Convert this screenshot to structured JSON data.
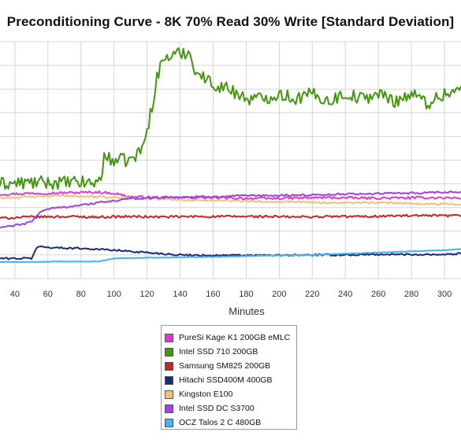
{
  "chart_data": {
    "type": "line",
    "title": "Preconditioning Curve - 8K 70% Read 30% Write [Standard Deviation]",
    "xlabel": "Minutes",
    "ylabel": "",
    "x_ticks": [
      40,
      60,
      80,
      100,
      120,
      140,
      160,
      180,
      200,
      220,
      240,
      260,
      280,
      300
    ],
    "xlim": [
      31,
      310
    ],
    "ylim": [
      0,
      10
    ],
    "grid": true,
    "legend_position": "bottom-center",
    "series": [
      {
        "name": "PureSi Kage K1 200GB eMLC",
        "color": "#d63ecf",
        "x": [
          31,
          50,
          70,
          90,
          100,
          110,
          130,
          150,
          170,
          190,
          210,
          230,
          250,
          270,
          290,
          310
        ],
        "y": [
          3.56,
          3.6,
          3.62,
          3.65,
          3.6,
          3.45,
          3.42,
          3.42,
          3.4,
          3.38,
          3.4,
          3.42,
          3.4,
          3.4,
          3.42,
          3.4
        ],
        "noise": 0.05
      },
      {
        "name": "Intel SSD 710 200GB",
        "color": "#44960e",
        "x": [
          31,
          50,
          70,
          90,
          92,
          94,
          100,
          110,
          115,
          118,
          120,
          123,
          126,
          130,
          135,
          140,
          145,
          150,
          160,
          170,
          180,
          190,
          200,
          210,
          220,
          230,
          240,
          250,
          260,
          270,
          280,
          290,
          300,
          310
        ],
        "y": [
          4.0,
          4.05,
          4.05,
          4.05,
          4.3,
          5.1,
          5.0,
          5.0,
          5.3,
          5.7,
          6.2,
          7.3,
          8.5,
          9.3,
          9.4,
          9.5,
          9.6,
          8.7,
          8.2,
          8.0,
          7.6,
          7.6,
          7.8,
          7.6,
          7.8,
          7.5,
          7.8,
          7.6,
          7.8,
          7.5,
          7.8,
          7.4,
          7.8,
          8.0
        ],
        "noise": 0.28
      },
      {
        "name": "Samsung SM825 200GB",
        "color": "#c2262a",
        "x": [
          31,
          50,
          70,
          90,
          110,
          130,
          150,
          170,
          190,
          210,
          230,
          250,
          270,
          290,
          310
        ],
        "y": [
          2.55,
          2.6,
          2.62,
          2.6,
          2.62,
          2.6,
          2.62,
          2.62,
          2.62,
          2.6,
          2.62,
          2.62,
          2.65,
          2.65,
          2.65
        ],
        "noise": 0.05
      },
      {
        "name": "Hitachi SSD400M 400GB",
        "color": "#1c2a7c",
        "x": [
          31,
          50,
          52,
          54,
          65,
          80,
          100,
          120,
          140,
          160,
          180,
          200,
          220,
          240,
          260,
          280,
          300,
          310
        ],
        "y": [
          0.85,
          0.85,
          1.15,
          1.35,
          1.3,
          1.28,
          1.2,
          1.1,
          1.0,
          0.98,
          0.98,
          0.98,
          1.0,
          1.0,
          1.02,
          1.02,
          1.02,
          1.05
        ],
        "noise": 0.04
      },
      {
        "name": "Kingston E100",
        "color": "#f2c07a",
        "x": [
          31,
          50,
          70,
          90,
          110,
          130,
          150,
          170,
          190,
          210,
          230,
          250,
          270,
          290,
          310
        ],
        "y": [
          3.4,
          3.45,
          3.5,
          3.45,
          3.4,
          3.35,
          3.3,
          3.3,
          3.25,
          3.25,
          3.2,
          3.2,
          3.2,
          3.15,
          3.15
        ],
        "noise": 0.04
      },
      {
        "name": "Intel SSD DC S3700",
        "color": "#a140e6",
        "x": [
          31,
          45,
          50,
          55,
          60,
          70,
          80,
          90,
          100,
          110,
          130,
          150,
          170,
          190,
          210,
          230,
          250,
          270,
          290,
          310
        ],
        "y": [
          2.15,
          2.3,
          2.4,
          2.8,
          2.95,
          3.02,
          3.1,
          3.2,
          3.28,
          3.38,
          3.42,
          3.45,
          3.48,
          3.5,
          3.52,
          3.55,
          3.58,
          3.6,
          3.62,
          3.65
        ],
        "noise": 0.04
      },
      {
        "name": "OCZ Talos 2 C 480GB",
        "color": "#43b4ee",
        "x": [
          31,
          50,
          70,
          90,
          95,
          100,
          120,
          140,
          160,
          180,
          200,
          220,
          240,
          260,
          280,
          300,
          310
        ],
        "y": [
          0.7,
          0.7,
          0.72,
          0.72,
          0.78,
          0.85,
          0.88,
          0.9,
          0.92,
          0.95,
          0.98,
          1.0,
          1.05,
          1.1,
          1.15,
          1.2,
          1.25
        ],
        "noise": 0.01
      }
    ]
  },
  "legend": {
    "items": [
      {
        "label": "PureSi Kage K1 200GB eMLC",
        "color": "#d63ecf"
      },
      {
        "label": "Intel SSD 710 200GB",
        "color": "#44960e"
      },
      {
        "label": "Samsung SM825 200GB",
        "color": "#c2262a"
      },
      {
        "label": "Hitachi SSD400M 400GB",
        "color": "#1c2a7c"
      },
      {
        "label": "Kingston E100",
        "color": "#f2c07a"
      },
      {
        "label": "Intel SSD DC S3700",
        "color": "#a140e6"
      },
      {
        "label": "OCZ Talos 2 C 480GB",
        "color": "#43b4ee"
      }
    ]
  }
}
